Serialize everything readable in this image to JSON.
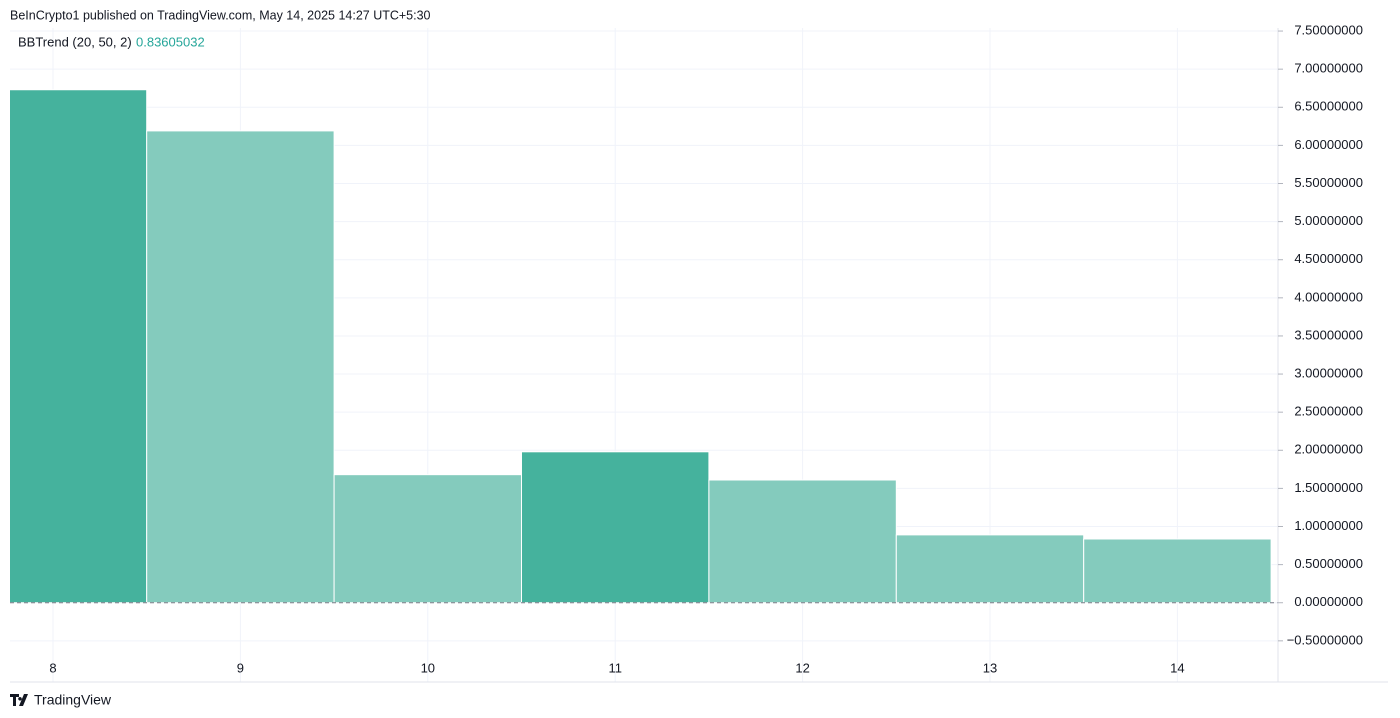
{
  "header": {
    "published": "BeInCrypto1 published on TradingView.com, May 14, 2025 14:27 UTC+5:30"
  },
  "footer": {
    "brand": "TradingView"
  },
  "chart_data": {
    "type": "bar",
    "indicator": "BBTrend (20, 50, 2)",
    "categories": [
      "8",
      "9",
      "10",
      "11",
      "12",
      "13",
      "14"
    ],
    "series": [
      {
        "name": "BBTrend",
        "values": [
          6.73,
          6.19,
          1.68,
          1.98,
          1.61,
          0.89,
          0.83605032
        ],
        "colors": [
          "#45b29d",
          "#84cbbd",
          "#84cbbd",
          "#45b29d",
          "#84cbbd",
          "#84cbbd",
          "#84cbbd"
        ]
      }
    ],
    "value_color": "#26a69a",
    "ylim": [
      -1.04,
      7.54
    ],
    "yticks": [
      {
        "value": -0.5,
        "label": "−0.50000000"
      },
      {
        "value": 0,
        "label": "0.00000000"
      },
      {
        "value": 0.5,
        "label": "0.50000000"
      },
      {
        "value": 1,
        "label": "1.00000000"
      },
      {
        "value": 1.5,
        "label": "1.50000000"
      },
      {
        "value": 2,
        "label": "2.00000000"
      },
      {
        "value": 2.5,
        "label": "2.50000000"
      },
      {
        "value": 3,
        "label": "3.00000000"
      },
      {
        "value": 3.5,
        "label": "3.50000000"
      },
      {
        "value": 4,
        "label": "4.00000000"
      },
      {
        "value": 4.5,
        "label": "4.50000000"
      },
      {
        "value": 5,
        "label": "5.00000000"
      },
      {
        "value": 5.5,
        "label": "5.50000000"
      },
      {
        "value": 6,
        "label": "6.00000000"
      },
      {
        "value": 6.5,
        "label": "6.50000000"
      },
      {
        "value": 7,
        "label": "7.00000000"
      },
      {
        "value": 7.5,
        "label": "7.50000000"
      }
    ],
    "grid": true
  }
}
